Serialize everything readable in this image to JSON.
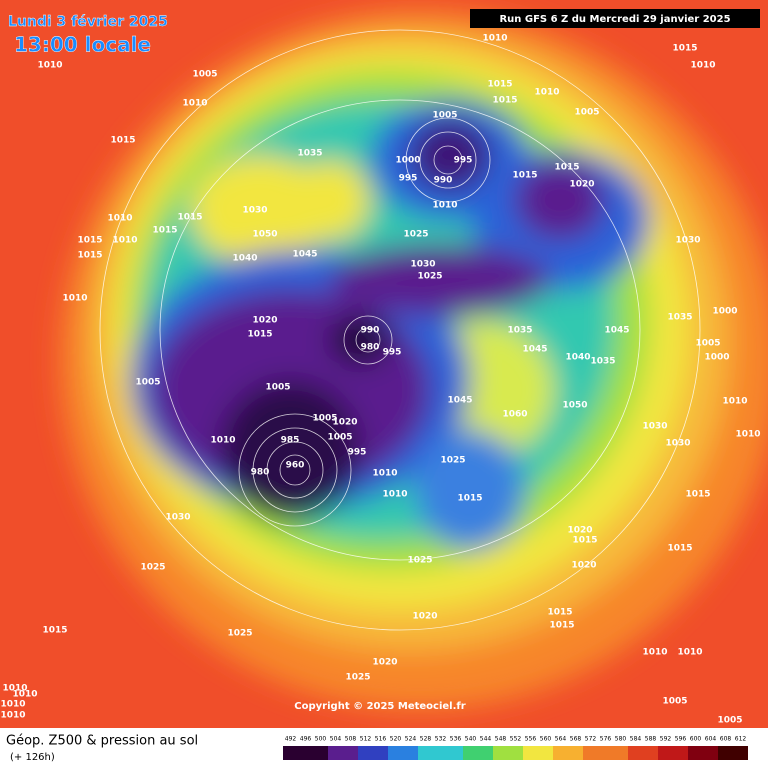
{
  "header": {
    "date": "Lundi 3 février 2025",
    "time": "13:00 locale",
    "run": "Run GFS 6 Z du Mercredi 29 janvier 2025"
  },
  "copyright": "Copyright © 2025 Meteociel.fr",
  "footer": {
    "title": "Géop. Z500 & pression au sol",
    "subtitle": "(+ 126h)"
  },
  "legend_values": [
    492,
    496,
    500,
    504,
    508,
    512,
    516,
    520,
    524,
    528,
    532,
    536,
    540,
    544,
    548,
    552,
    556,
    560,
    564,
    568,
    572,
    576,
    580,
    584,
    588,
    592,
    596,
    600,
    604,
    608,
    612
  ],
  "pressure_labels": [
    1010,
    1005,
    1010,
    1015,
    1035,
    1030,
    1015,
    1015,
    1010,
    1015,
    1010,
    1015,
    1010,
    1050,
    1040,
    1045,
    1010,
    1015,
    1015,
    1010,
    1005,
    1005,
    1000,
    995,
    995,
    990,
    1010,
    1025,
    1015,
    1015,
    1020,
    1030,
    1025,
    1030,
    1020,
    1015,
    990,
    980,
    995,
    1035,
    1045,
    1045,
    1035,
    1000,
    1005,
    1000,
    1040,
    1035,
    1005,
    1005,
    1045,
    1060,
    1050,
    1005,
    1020,
    1005,
    1010,
    985,
    995,
    1025,
    1010,
    980,
    960,
    1010,
    1015,
    1030,
    1030,
    1010,
    1010,
    1015,
    1030,
    1020,
    1015,
    1020,
    1025,
    1015,
    1025,
    1020,
    1015,
    1015,
    1015,
    1025,
    1020,
    1010,
    1025,
    1010,
    1010,
    1010,
    1010,
    1010,
    1005,
    1005,
    1015,
    1010
  ]
}
